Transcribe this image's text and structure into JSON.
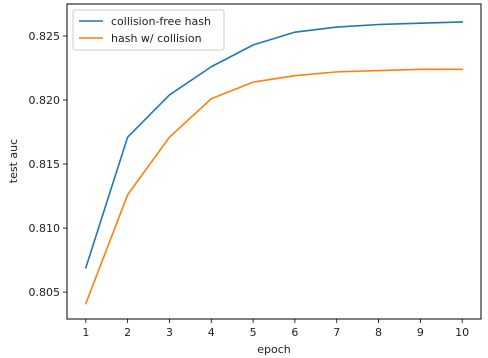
{
  "chart_data": {
    "type": "line",
    "xlabel": "epoch",
    "ylabel": "test auc",
    "x": [
      1,
      2,
      3,
      4,
      5,
      6,
      7,
      8,
      9,
      10
    ],
    "xticks": [
      "1",
      "2",
      "3",
      "4",
      "5",
      "6",
      "7",
      "8",
      "9",
      "10"
    ],
    "xlim": [
      0.55,
      10.45
    ],
    "yticks": [
      "0.805",
      "0.810",
      "0.815",
      "0.820",
      "0.825"
    ],
    "ytick_values": [
      0.805,
      0.81,
      0.815,
      0.82,
      0.825
    ],
    "ylim": [
      0.8029,
      0.8275
    ],
    "grid": false,
    "legend_position": "top-left",
    "series": [
      {
        "name": "collision-free hash",
        "color": "#1f77b4",
        "values": [
          0.8069,
          0.8171,
          0.8204,
          0.8226,
          0.8243,
          0.8253,
          0.8257,
          0.8259,
          0.826,
          0.8261
        ]
      },
      {
        "name": "hash w/ collision",
        "color": "#ff7f0e",
        "values": [
          0.8041,
          0.8126,
          0.8171,
          0.8201,
          0.8214,
          0.8219,
          0.8222,
          0.8223,
          0.8224,
          0.8224
        ]
      }
    ]
  }
}
